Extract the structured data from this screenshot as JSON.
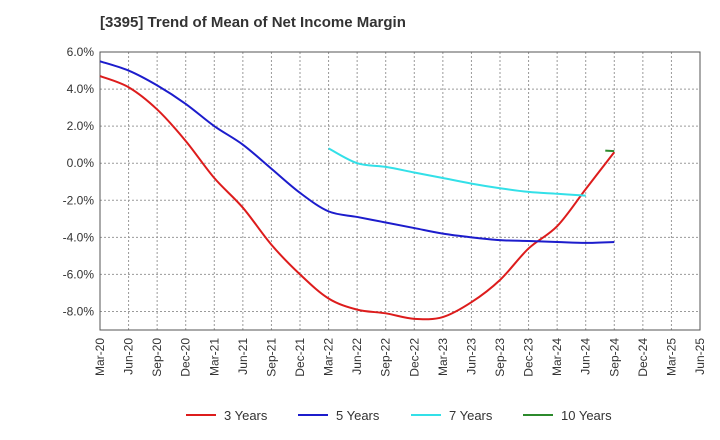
{
  "chart_data": {
    "type": "line",
    "title": "[3395]  Trend of Mean of Net Income Margin",
    "xlabel": "",
    "ylabel": "",
    "y_tick_labels": [
      "6.0%",
      "4.0%",
      "2.0%",
      "0.0%",
      "-2.0%",
      "-4.0%",
      "-6.0%",
      "-8.0%"
    ],
    "y_ticks": [
      6,
      4,
      2,
      0,
      -2,
      -4,
      -6,
      -8
    ],
    "ylim": [
      -9,
      6
    ],
    "x_tick_labels": [
      "Mar-20",
      "Jun-20",
      "Sep-20",
      "Dec-20",
      "Mar-21",
      "Jun-21",
      "Sep-21",
      "Dec-21",
      "Mar-22",
      "Jun-22",
      "Sep-22",
      "Dec-22",
      "Mar-23",
      "Jun-23",
      "Sep-23",
      "Dec-23",
      "Mar-24",
      "Jun-24",
      "Sep-24",
      "Dec-24",
      "Mar-25",
      "Jun-25"
    ],
    "grid": true,
    "legend_position": "bottom",
    "series": [
      {
        "name": "3 Years",
        "color": "#dd1c1c",
        "values": [
          4.7,
          4.1,
          2.9,
          1.2,
          -0.8,
          -2.4,
          -4.4,
          -6.0,
          -7.3,
          -7.9,
          -8.1,
          -8.4,
          -8.3,
          -7.5,
          -6.3,
          -4.6,
          -3.4,
          -1.4,
          0.6
        ]
      },
      {
        "name": "5 Years",
        "color": "#1c1ccc",
        "values": [
          5.5,
          5.0,
          4.2,
          3.2,
          2.0,
          1.0,
          -0.3,
          -1.6,
          -2.6,
          -2.9,
          -3.2,
          -3.5,
          -3.8,
          -4.0,
          -4.15,
          -4.2,
          -4.25,
          -4.3,
          -4.25
        ]
      },
      {
        "name": "7 Years",
        "color": "#33e0e8",
        "values": [
          null,
          null,
          null,
          null,
          null,
          null,
          null,
          null,
          0.8,
          0.0,
          -0.2,
          -0.5,
          -0.8,
          -1.1,
          -1.35,
          -1.55,
          -1.65,
          -1.75
        ]
      },
      {
        "name": "10 Years",
        "color": "#2c8a2c",
        "values": [
          null,
          null,
          null,
          null,
          null,
          null,
          null,
          null,
          null,
          null,
          null,
          null,
          null,
          null,
          null,
          null,
          null,
          null,
          0.65
        ]
      }
    ]
  }
}
